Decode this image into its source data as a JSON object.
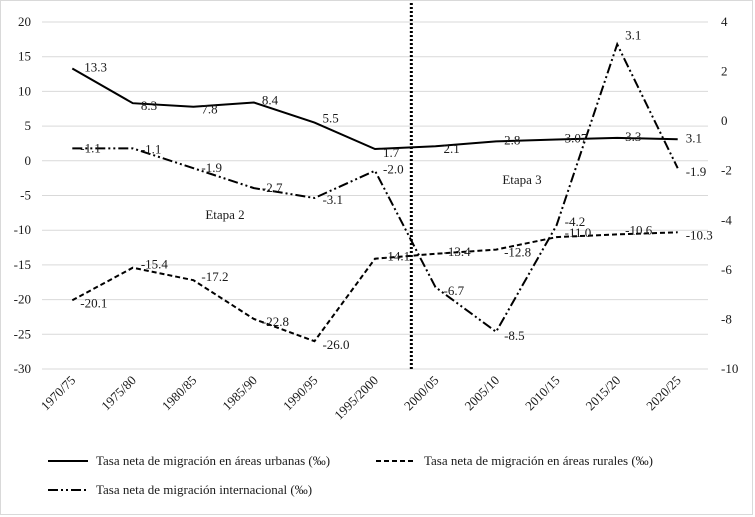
{
  "chart_data": {
    "type": "line",
    "categories": [
      "1970/75",
      "1975/80",
      "1980/85",
      "1985/90",
      "1990/95",
      "1995/2000",
      "2000/05",
      "2005/10",
      "2010/15",
      "2015/20",
      "2020/25"
    ],
    "y_left": {
      "min": -30,
      "max": 20,
      "step": 5
    },
    "y_right": {
      "min": -10,
      "max": 4,
      "step": 2
    },
    "series": [
      {
        "name": "Tasa neta de migración en áreas urbanas (‰)",
        "axis": "left",
        "dash": "solid",
        "values": [
          13.3,
          8.3,
          7.8,
          8.4,
          5.5,
          1.7,
          2.1,
          2.8,
          3.07,
          3.3,
          3.1
        ],
        "labels": [
          "13.3",
          "8.3",
          "7.8",
          "8.4",
          "5.5",
          "1.7",
          "2.1",
          "2.8",
          "3.07",
          "3.3",
          "3.1"
        ]
      },
      {
        "name": "Tasa neta de migración en áreas rurales (‰)",
        "axis": "left",
        "dash": "dashed",
        "values": [
          -20.1,
          -15.4,
          -17.2,
          -22.8,
          -26.0,
          -14.1,
          -13.4,
          -12.8,
          -11.0,
          -10.6,
          -10.3
        ],
        "labels": [
          "-20.1",
          "-15.4",
          "-17.2",
          "-22.8",
          "-26.0",
          "-14.1",
          "-13.4",
          "-12.8",
          "-11.0",
          "-10.6",
          "-10.3"
        ]
      },
      {
        "name": "Tasa neta de migración internacional (‰)",
        "axis": "right",
        "dash": "dashdotdot",
        "values": [
          -1.1,
          -1.1,
          -1.9,
          -2.7,
          -3.1,
          -2.0,
          -6.7,
          -8.5,
          -4.2,
          3.1,
          -1.9
        ],
        "labels": [
          "-1.1",
          "-1.1",
          "-1.9",
          "-2.7",
          "-3.1",
          "-2.0",
          "-6.7",
          "-8.5",
          "-4.2",
          "3.1",
          "-1.9"
        ]
      }
    ],
    "annotations": [
      "Etapa 2",
      "Etapa 3"
    ],
    "grid": "horizontal"
  }
}
